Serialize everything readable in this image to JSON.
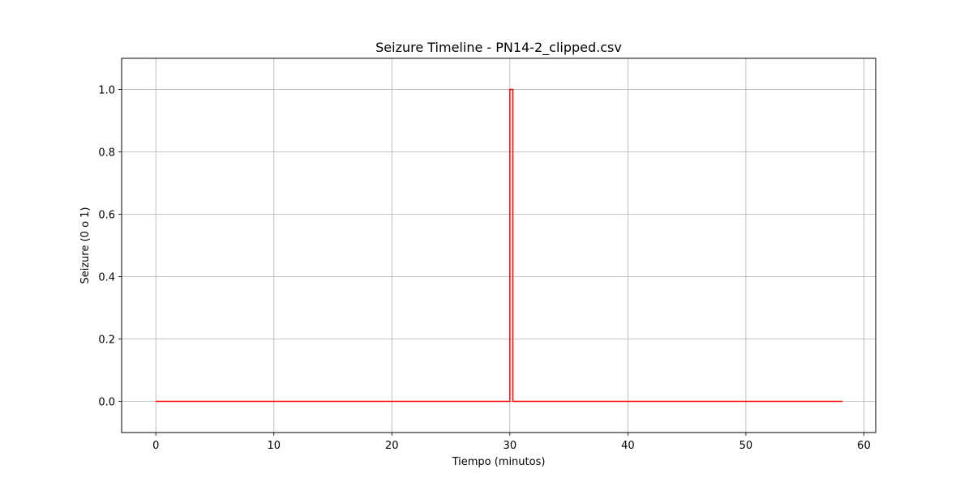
{
  "chart_data": {
    "type": "line",
    "title": "Seizure Timeline - PN14-2_clipped.csv",
    "xlabel": "Tiempo (minutos)",
    "ylabel": "Seizure (0 o 1)",
    "xlim": [
      -2.9,
      61.0
    ],
    "ylim": [
      -0.1,
      1.1
    ],
    "xticks": [
      0,
      10,
      20,
      30,
      40,
      50,
      60
    ],
    "yticks": [
      0.0,
      0.2,
      0.4,
      0.6,
      0.8,
      1.0
    ],
    "xtick_labels": [
      "0",
      "10",
      "20",
      "30",
      "40",
      "50",
      "60"
    ],
    "ytick_labels": [
      "0.0",
      "0.2",
      "0.4",
      "0.6",
      "0.8",
      "1.0"
    ],
    "grid": true,
    "step": true,
    "series": [
      {
        "color": "#ff0000",
        "x": [
          0,
          30.0,
          30.0,
          30.25,
          30.25,
          58.2
        ],
        "y": [
          0,
          0,
          1,
          1,
          0,
          0
        ]
      }
    ]
  }
}
